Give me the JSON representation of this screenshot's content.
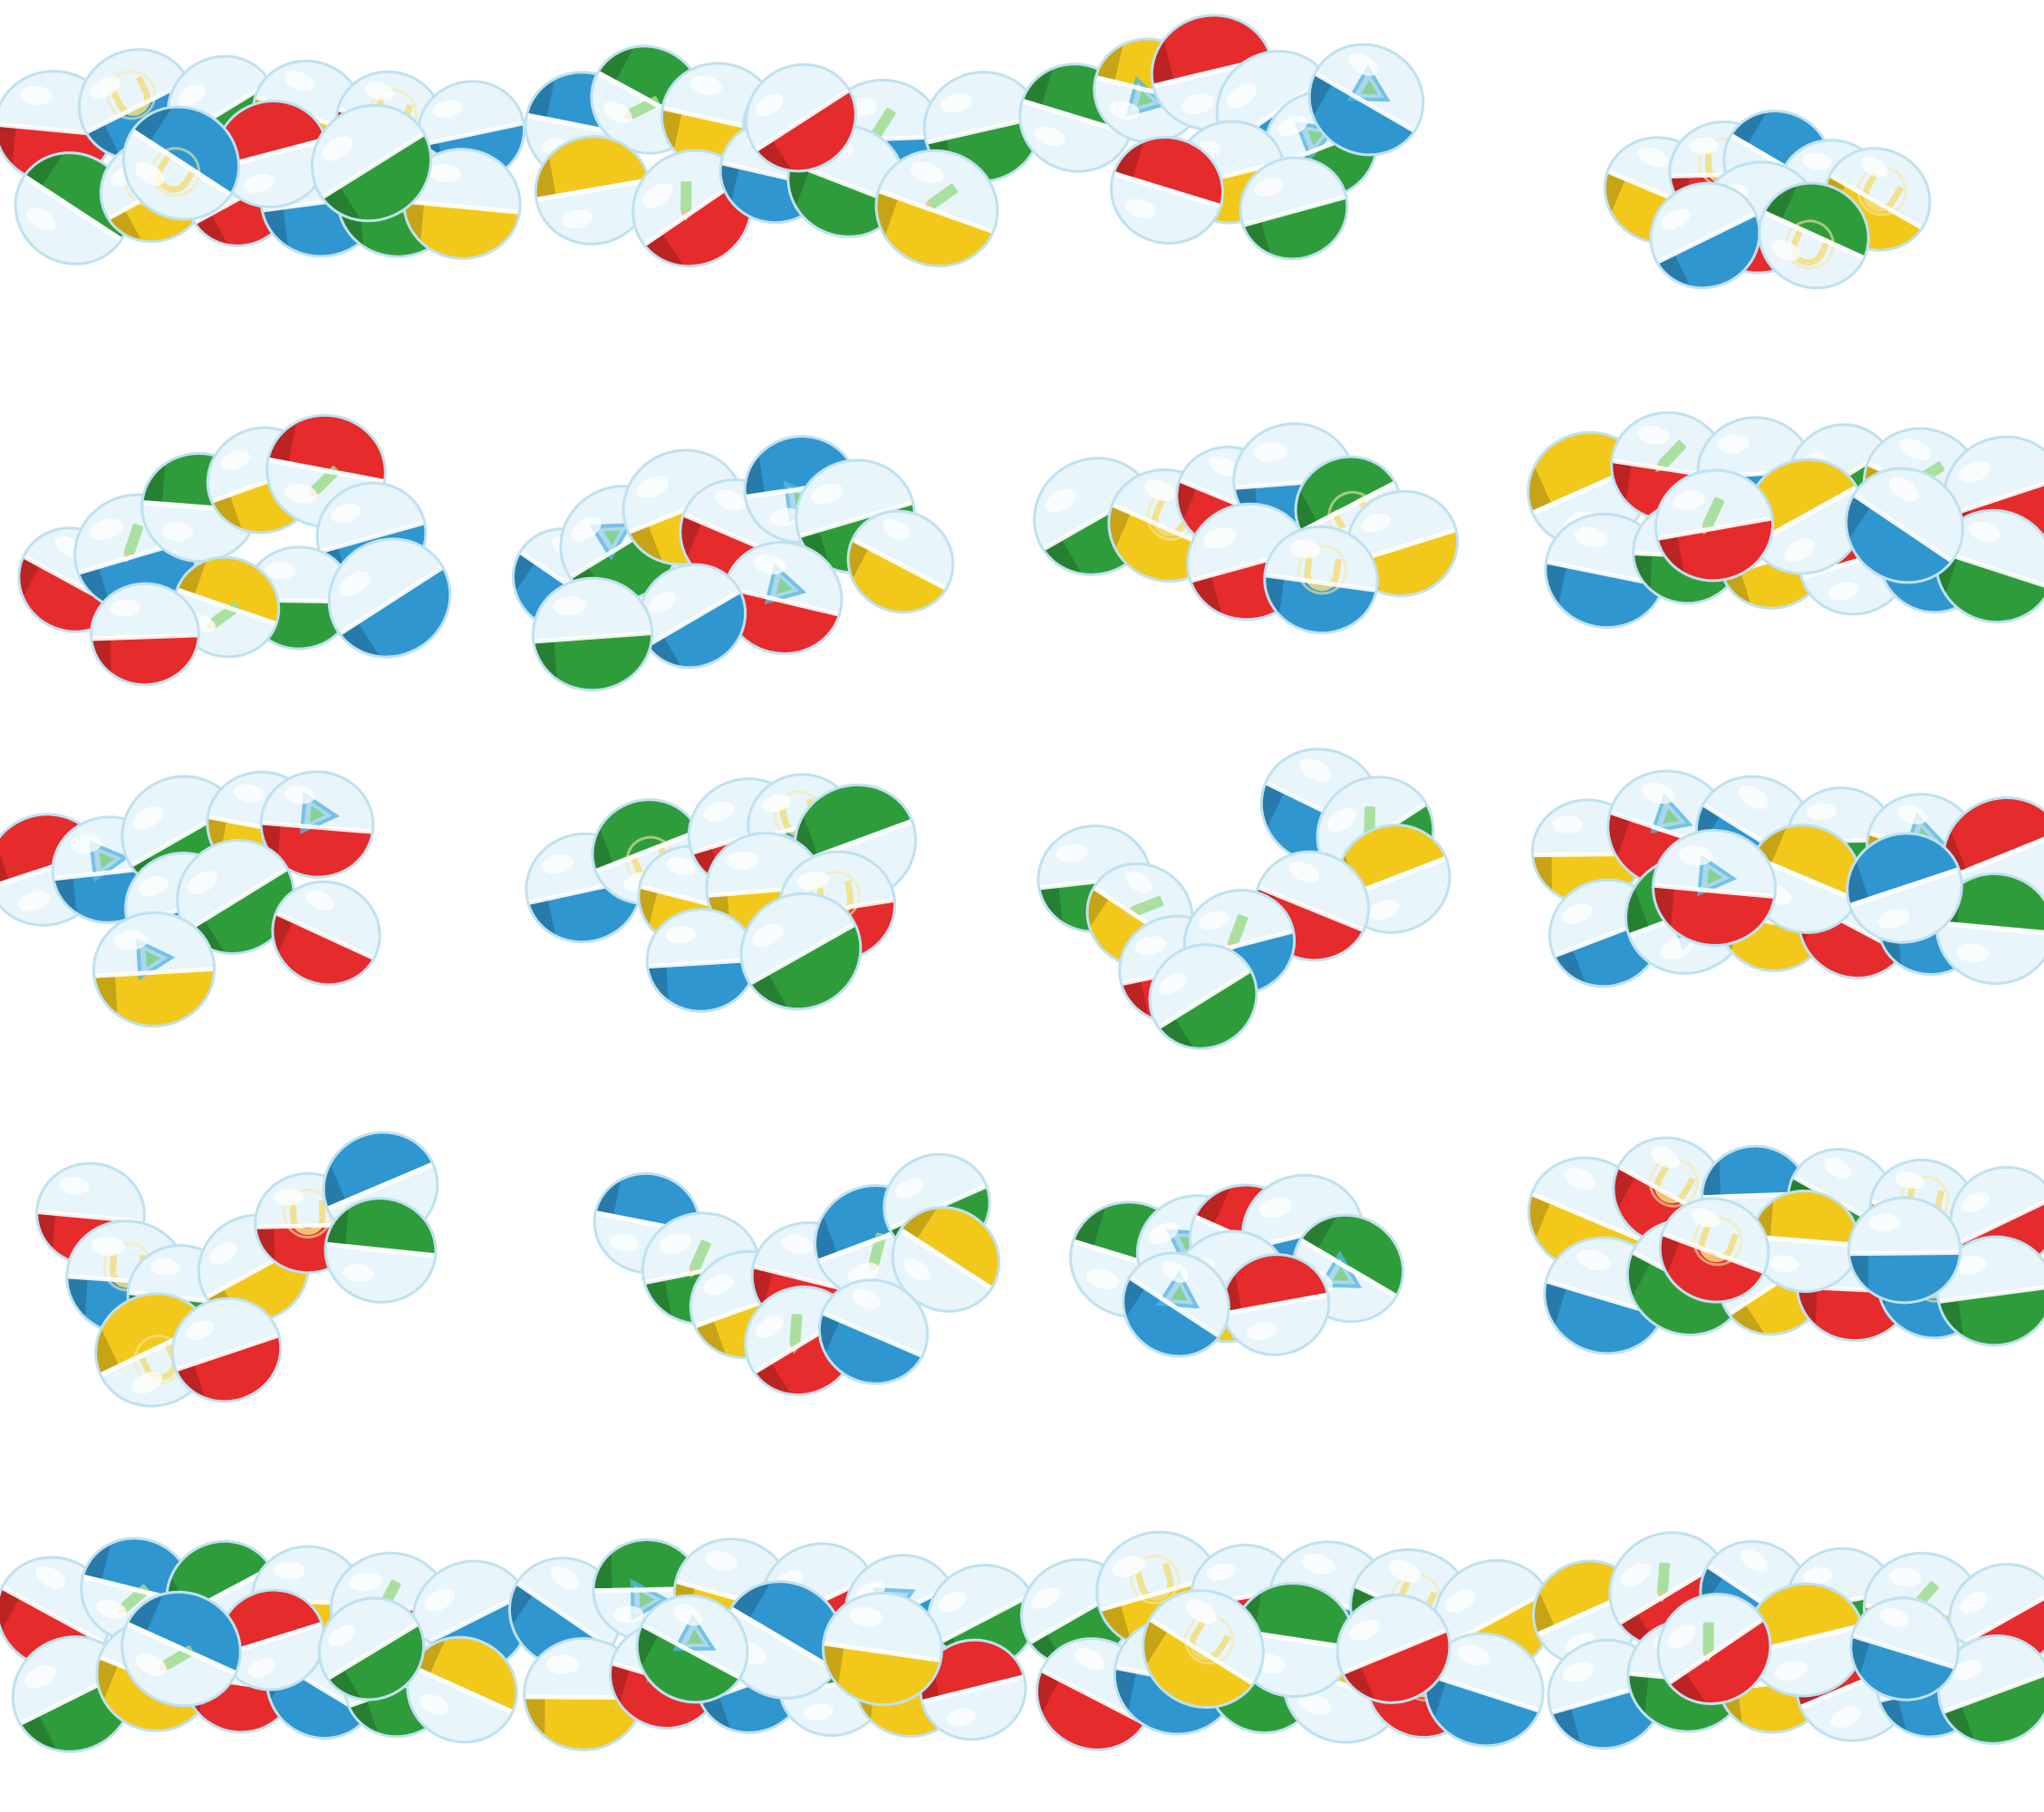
{
  "sheet": {
    "background": "#ffffff",
    "rows": 5,
    "columns": 4
  },
  "colors": {
    "red": "#e52b2b",
    "blue": "#2f96cf",
    "green": "#2f9c3c",
    "yellow": "#f2c81b",
    "clear": "#e8f5fb",
    "clear_edge": "#bfe1f0"
  },
  "capsule_colors": [
    "red",
    "blue",
    "green",
    "yellow"
  ],
  "prize_icons": [
    "play-triangle-icon",
    "horseshoe-icon",
    "pencil-icon"
  ],
  "sprites": [
    {
      "name": "sprite-r1c1-pile",
      "pose": "pile"
    },
    {
      "name": "sprite-r1c2-pile-loosening",
      "pose": "loose"
    },
    {
      "name": "sprite-r1c3-bouncing",
      "pose": "bounce"
    },
    {
      "name": "sprite-r1c4-cluster-small",
      "pose": "cluster-small"
    },
    {
      "name": "sprite-r2c1-scatter",
      "pose": "scatter"
    },
    {
      "name": "sprite-r2c2-scatter",
      "pose": "scatter2"
    },
    {
      "name": "sprite-r2c3-cluster",
      "pose": "cluster"
    },
    {
      "name": "sprite-r2c4-pile",
      "pose": "pile"
    },
    {
      "name": "sprite-r3c1-burst",
      "pose": "burst"
    },
    {
      "name": "sprite-r3c2-burst",
      "pose": "burst2"
    },
    {
      "name": "sprite-r3c3-split",
      "pose": "split"
    },
    {
      "name": "sprite-r3c4-pile",
      "pose": "pile"
    },
    {
      "name": "sprite-r4c1-arc",
      "pose": "arc"
    },
    {
      "name": "sprite-r4c2-arc",
      "pose": "arc2"
    },
    {
      "name": "sprite-r4c3-cluster-small",
      "pose": "cluster-small2"
    },
    {
      "name": "sprite-r4c4-pile",
      "pose": "pile"
    },
    {
      "name": "sprite-r5c1-pile",
      "pose": "pile"
    },
    {
      "name": "sprite-r5c2-pile",
      "pose": "pile"
    },
    {
      "name": "sprite-r5c3-pile",
      "pose": "pile"
    },
    {
      "name": "sprite-r5c4-pile",
      "pose": "pile"
    }
  ]
}
